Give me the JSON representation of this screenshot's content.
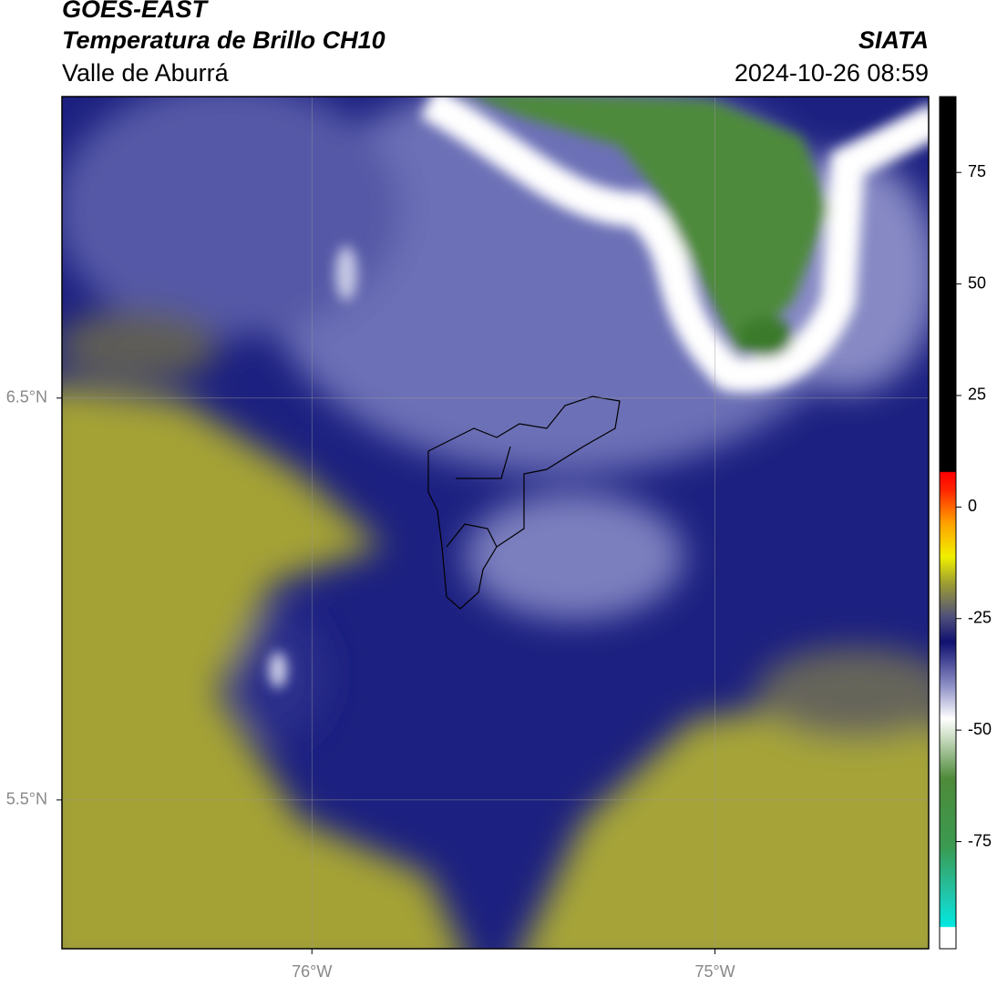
{
  "header": {
    "line1": "GOES-EAST",
    "line2": "Temperatura de Brillo CH10",
    "line3": "Valle de Aburrá",
    "source": "SIATA",
    "datetime": "2024-10-26 08:59"
  },
  "map": {
    "type": "map",
    "xlim": [
      -76.62,
      -74.47
    ],
    "ylim": [
      5.13,
      7.25
    ],
    "xticks": [
      {
        "value": -76,
        "label": "76°W"
      },
      {
        "value": -75,
        "label": "75°W"
      }
    ],
    "yticks": [
      {
        "value": 6.5,
        "label": "6.5°N"
      },
      {
        "value": 5.5,
        "label": "5.5°N"
      }
    ],
    "grid": true
  },
  "colorbar": {
    "ylim": [
      -99,
      92
    ],
    "yticks": [
      75,
      50,
      25,
      0,
      -25,
      -50,
      -75
    ]
  }
}
